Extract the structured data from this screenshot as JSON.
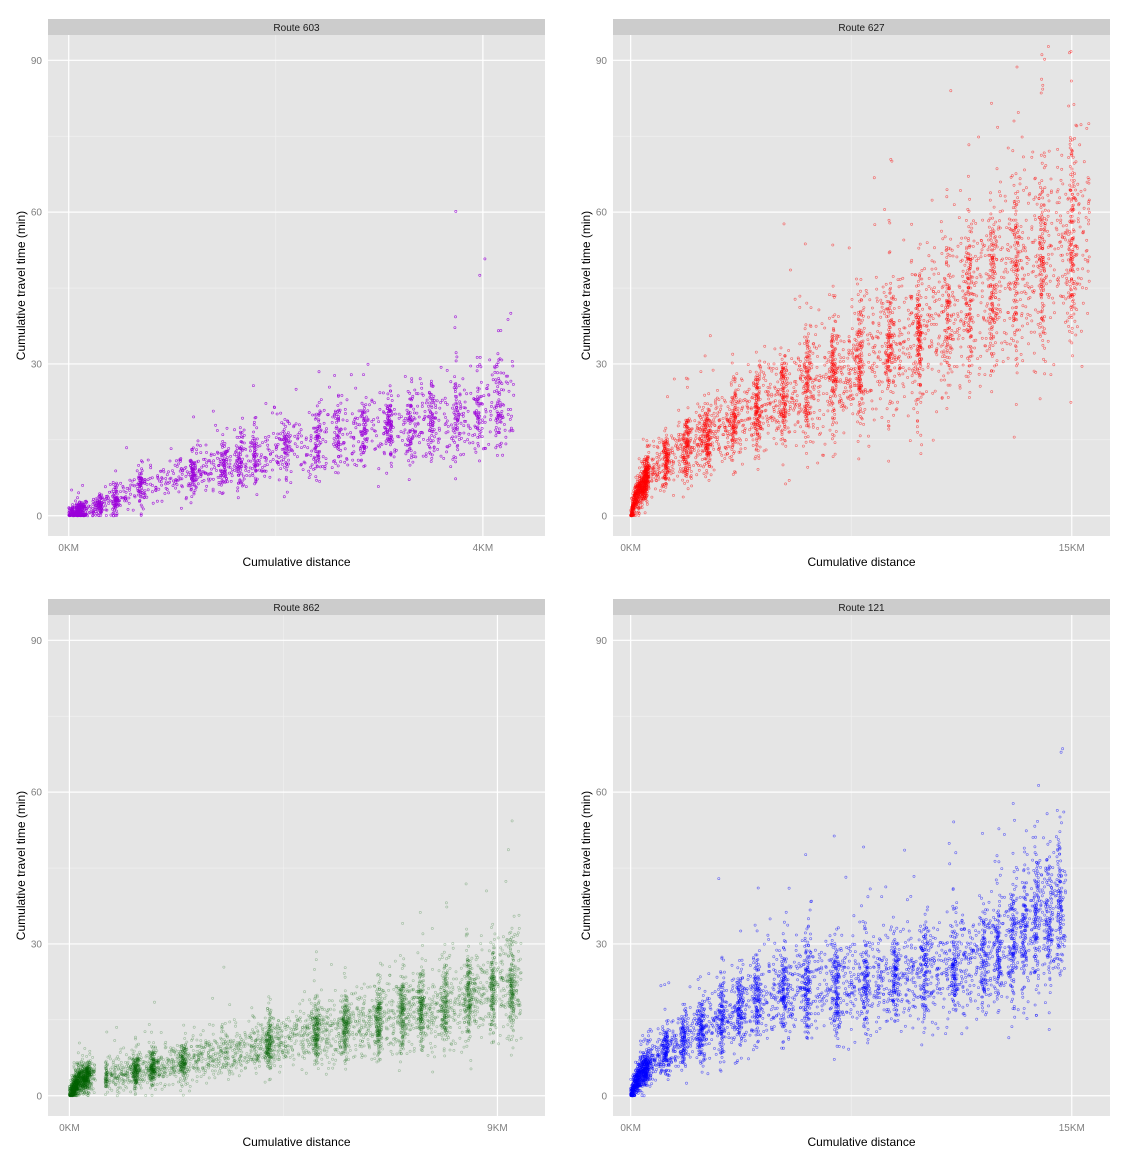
{
  "chart_data": [
    {
      "type": "scatter",
      "title": "Route 603",
      "xlabel": "Cumulative distance",
      "ylabel": "Cumulative travel time (min)",
      "color": "#9b00d9",
      "opacity": 0.85,
      "xlim": [
        -0.2,
        4.6
      ],
      "ylim": [
        -4,
        95
      ],
      "xticks": [
        0,
        4
      ],
      "xtick_labels": [
        "0KM",
        "4KM"
      ],
      "yticks": [
        0,
        30,
        60,
        90
      ],
      "ytick_labels": [
        "0",
        "30",
        "60",
        "90"
      ],
      "x_unit": "KM",
      "grid": true,
      "series": [
        {
          "n_points": 2200,
          "x_range": [
            0,
            4.3
          ],
          "trend": [
            [
              0,
              0
            ],
            [
              0.25,
              1.5
            ],
            [
              0.5,
              3.5
            ],
            [
              0.7,
              6
            ],
            [
              1.0,
              7.5
            ],
            [
              1.5,
              10
            ],
            [
              2.0,
              13
            ],
            [
              2.5,
              15
            ],
            [
              3.0,
              17
            ],
            [
              3.5,
              18.5
            ],
            [
              4.0,
              21
            ],
            [
              4.3,
              22
            ]
          ],
          "stop_bands_x": [
            0.1,
            0.3,
            0.45,
            0.7,
            1.2,
            1.5,
            1.65,
            1.8,
            2.1,
            2.4,
            2.6,
            2.85,
            3.1,
            3.3,
            3.5,
            3.75,
            3.95,
            4.15
          ]
        }
      ]
    },
    {
      "type": "scatter",
      "title": "Route 627",
      "xlabel": "Cumulative distance",
      "ylabel": "Cumulative travel time (min)",
      "color": "#ff0000",
      "opacity": 0.55,
      "xlim": [
        -0.6,
        16.3
      ],
      "ylim": [
        -4,
        95
      ],
      "xticks": [
        0,
        15
      ],
      "xtick_labels": [
        "0KM",
        "15KM"
      ],
      "yticks": [
        0,
        30,
        60,
        90
      ],
      "ytick_labels": [
        "0",
        "30",
        "60",
        "90"
      ],
      "x_unit": "KM",
      "grid": true,
      "series": [
        {
          "n_points": 4500,
          "x_range": [
            0,
            15.6
          ],
          "trend": [
            [
              0,
              0
            ],
            [
              0.2,
              4
            ],
            [
              0.6,
              8
            ],
            [
              1.5,
              12
            ],
            [
              3,
              17
            ],
            [
              4,
              20
            ],
            [
              6,
              25
            ],
            [
              8,
              30
            ],
            [
              9,
              33
            ],
            [
              10,
              36
            ],
            [
              11,
              40
            ],
            [
              12,
              44
            ],
            [
              13,
              48
            ],
            [
              14,
              51
            ],
            [
              15,
              54
            ],
            [
              15.6,
              56
            ]
          ],
          "stop_bands_x": [
            0.5,
            1.2,
            1.9,
            2.6,
            3.5,
            4.3,
            5.2,
            6.0,
            6.9,
            7.8,
            8.8,
            9.8,
            10.8,
            11.5,
            12.3,
            13.1,
            14.0,
            15.0
          ]
        }
      ]
    },
    {
      "type": "scatter",
      "title": "Route 862",
      "xlabel": "Cumulative distance",
      "ylabel": "Cumulative travel time (min)",
      "color": "#006400",
      "opacity": 0.3,
      "xlim": [
        -0.45,
        10.0
      ],
      "ylim": [
        -4,
        95
      ],
      "xticks": [
        0,
        9
      ],
      "xtick_labels": [
        "0KM",
        "9KM"
      ],
      "yticks": [
        0,
        30,
        60,
        90
      ],
      "ytick_labels": [
        "0",
        "30",
        "60",
        "90"
      ],
      "x_unit": "KM",
      "grid": true,
      "series": [
        {
          "n_points": 5500,
          "x_range": [
            0,
            9.5
          ],
          "trend": [
            [
              0,
              0
            ],
            [
              0.2,
              3
            ],
            [
              0.5,
              4
            ],
            [
              0.8,
              4
            ],
            [
              1.5,
              5
            ],
            [
              2.5,
              7
            ],
            [
              4,
              10
            ],
            [
              5,
              12
            ],
            [
              6,
              14
            ],
            [
              7,
              16
            ],
            [
              8,
              18
            ],
            [
              9,
              21
            ],
            [
              9.5,
              22
            ]
          ],
          "stop_bands_x": [
            0.1,
            0.4,
            1.4,
            1.75,
            2.4,
            4.2,
            5.2,
            5.8,
            6.5,
            7.0,
            7.4,
            7.9,
            8.4,
            8.9,
            9.3
          ],
          "gap_x": [
            0.55,
            0.75
          ]
        }
      ]
    },
    {
      "type": "scatter",
      "title": "Route 121",
      "xlabel": "Cumulative distance",
      "ylabel": "Cumulative travel time (min)",
      "color": "#0000ff",
      "opacity": 0.55,
      "xlim": [
        -0.6,
        16.3
      ],
      "ylim": [
        -4,
        95
      ],
      "xticks": [
        0,
        15
      ],
      "xtick_labels": [
        "0KM",
        "15KM"
      ],
      "yticks": [
        0,
        30,
        60,
        90
      ],
      "ytick_labels": [
        "0",
        "30",
        "60",
        "90"
      ],
      "x_unit": "KM",
      "grid": true,
      "series": [
        {
          "n_points": 4500,
          "x_range": [
            0,
            14.8
          ],
          "trend": [
            [
              0,
              0
            ],
            [
              0.3,
              4
            ],
            [
              1,
              8
            ],
            [
              2,
              12
            ],
            [
              3,
              15
            ],
            [
              4,
              18
            ],
            [
              5,
              20
            ],
            [
              6,
              21
            ],
            [
              8,
              22
            ],
            [
              10,
              24
            ],
            [
              12,
              27
            ],
            [
              13,
              30
            ],
            [
              14,
              34
            ],
            [
              14.8,
              37
            ]
          ],
          "stop_bands_x": [
            0.6,
            1.2,
            1.8,
            2.4,
            3.1,
            3.7,
            4.3,
            5.2,
            6.0,
            7.0,
            8.0,
            9.0,
            10.0,
            11.0,
            12.0,
            12.5,
            13.0,
            13.4,
            13.8,
            14.2,
            14.6
          ]
        }
      ]
    }
  ]
}
